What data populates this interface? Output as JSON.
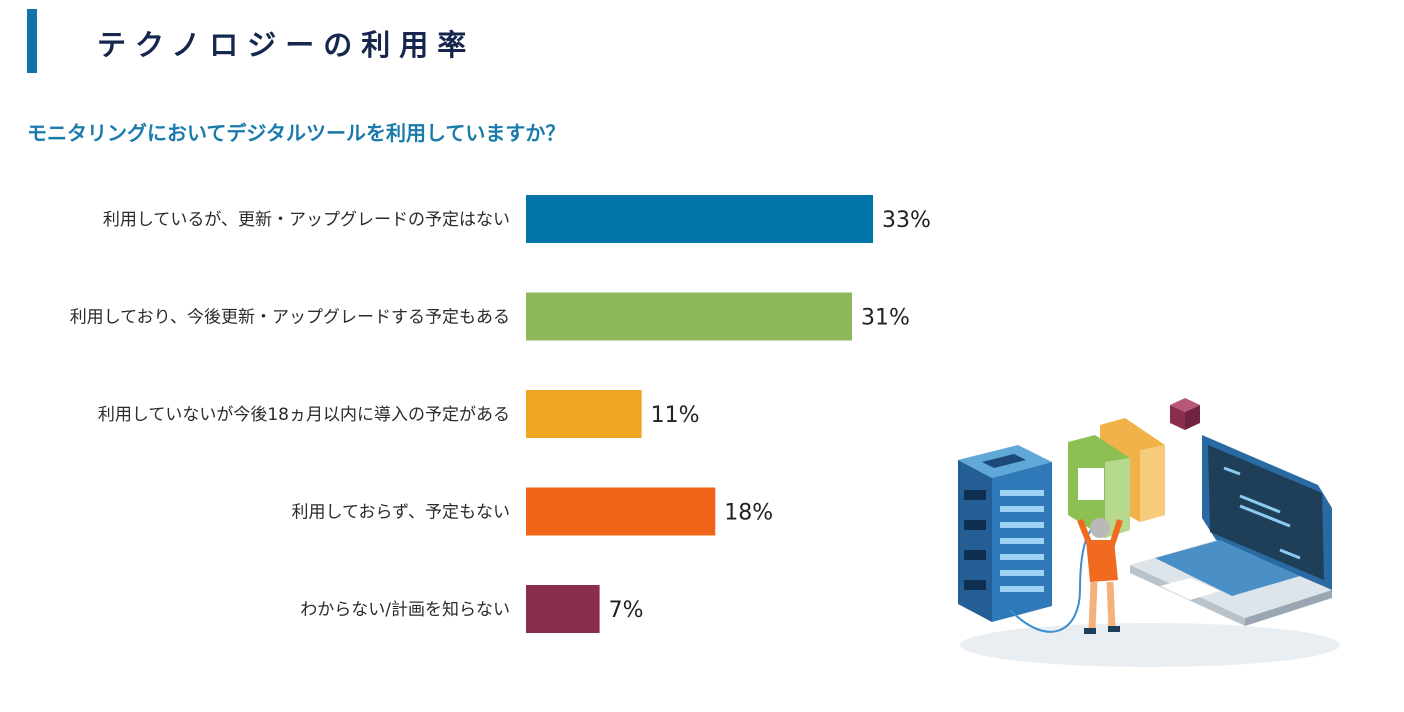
{
  "page": {
    "title": "テクノロジーの利用率",
    "question": "モニタリングにおいてデジタルツールを利用していますか？"
  },
  "chart_data": {
    "type": "bar",
    "orientation": "horizontal",
    "title": "モニタリングにおいてデジタルツールを利用していますか？",
    "categories": [
      "利用しているが、更新・アップグレードの予定はない",
      "利用しており、今後更新・アップグレードする予定もある",
      "利用していないが今後18ヵ月以内に導入の予定がある",
      "利用しておらず、予定もない",
      "わからない/計画を知らない"
    ],
    "values": [
      33,
      31,
      11,
      18,
      7
    ],
    "value_labels": [
      "33%",
      "31%",
      "11%",
      "18%",
      "7%"
    ],
    "colors": [
      "#0073a8",
      "#8db85a",
      "#f0a520",
      "#ef6416",
      "#8a2e4e"
    ],
    "unit": "%",
    "xlim": [
      0,
      100
    ],
    "grid": false,
    "legend": "none"
  },
  "illustration": {
    "icon": "server-laptop-technician-icon",
    "colors": [
      "#2a6aa3",
      "#8dc053",
      "#f2b24a",
      "#f06a1f",
      "#8a2e4e"
    ]
  }
}
